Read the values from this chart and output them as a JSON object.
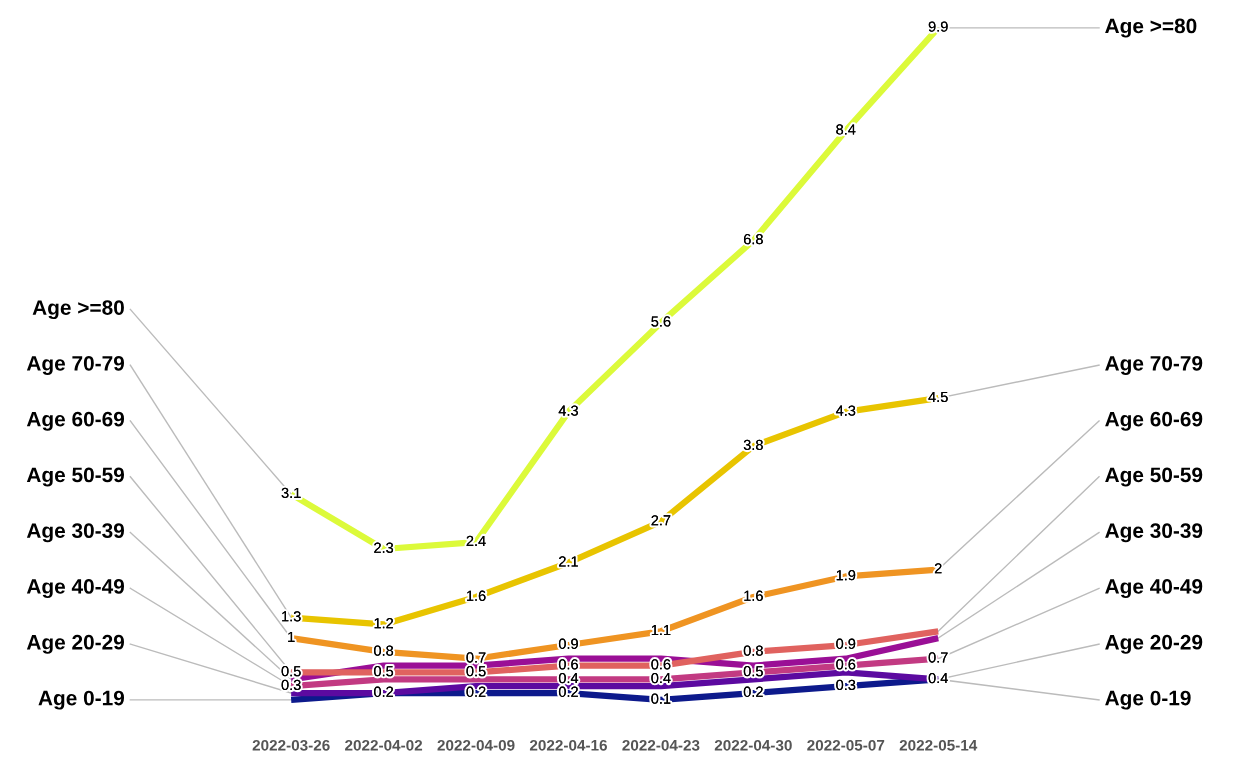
{
  "chart_data": {
    "type": "line",
    "categories": [
      "2022-03-26",
      "2022-04-02",
      "2022-04-09",
      "2022-04-16",
      "2022-04-23",
      "2022-04-30",
      "2022-05-07",
      "2022-05-14"
    ],
    "series": [
      {
        "name": "Age 0-19",
        "color": "#0d1a8c",
        "values": [
          0.1,
          0.2,
          0.2,
          0.2,
          0.1,
          0.2,
          0.3,
          0.4
        ],
        "value_labels": [
          null,
          "0.2",
          "0.2",
          "0.2",
          "0.1",
          "0.2",
          "0.3",
          null
        ]
      },
      {
        "name": "Age 20-29",
        "color": "#5c0aa0",
        "values": [
          0.2,
          0.2,
          0.3,
          0.3,
          0.3,
          0.4,
          0.5,
          0.4
        ],
        "value_labels": [
          null,
          null,
          null,
          null,
          null,
          null,
          null,
          "0.4"
        ]
      },
      {
        "name": "Age 40-49",
        "color": "#c23a82",
        "values": [
          0.3,
          0.4,
          0.4,
          0.4,
          0.4,
          0.5,
          0.6,
          0.7
        ],
        "value_labels": [
          "0.3",
          null,
          null,
          "0.4",
          "0.4",
          "0.5",
          "0.6",
          "0.7"
        ]
      },
      {
        "name": "Age 30-39",
        "color": "#9a0f96",
        "values": [
          0.4,
          0.6,
          0.6,
          0.7,
          0.7,
          0.6,
          0.7,
          1
        ],
        "value_labels": [
          null,
          null,
          null,
          null,
          null,
          null,
          null,
          null
        ]
      },
      {
        "name": "Age 50-59",
        "color": "#e0625f",
        "values": [
          0.5,
          0.5,
          0.5,
          0.6,
          0.6,
          0.8,
          0.9,
          1.1
        ],
        "value_labels": [
          "0.5",
          "0.5",
          "0.5",
          "0.6",
          "0.6",
          "0.8",
          "0.9",
          null
        ]
      },
      {
        "name": "Age 60-69",
        "color": "#ef9422",
        "values": [
          1,
          0.8,
          0.7,
          0.9,
          1.1,
          1.6,
          1.9,
          2
        ],
        "value_labels": [
          "1",
          "0.8",
          "0.7",
          "0.9",
          "1.1",
          "1.6",
          "1.9",
          "2"
        ]
      },
      {
        "name": "Age 70-79",
        "color": "#e8c400",
        "values": [
          1.3,
          1.2,
          1.6,
          2.1,
          2.7,
          3.8,
          4.3,
          4.5
        ],
        "value_labels": [
          "1.3",
          "1.2",
          "1.6",
          "2.1",
          "2.7",
          "3.8",
          "4.3",
          "4.5"
        ]
      },
      {
        "name": "Age >=80",
        "color": "#dcfa3a",
        "values": [
          3.1,
          2.3,
          2.4,
          4.3,
          5.6,
          6.8,
          8.4,
          9.9
        ],
        "value_labels": [
          "3.1",
          "2.3",
          "2.4",
          "4.3",
          "5.6",
          "6.8",
          "8.4",
          "9.9"
        ]
      }
    ],
    "tick_labels": "x",
    "grid": false
  }
}
